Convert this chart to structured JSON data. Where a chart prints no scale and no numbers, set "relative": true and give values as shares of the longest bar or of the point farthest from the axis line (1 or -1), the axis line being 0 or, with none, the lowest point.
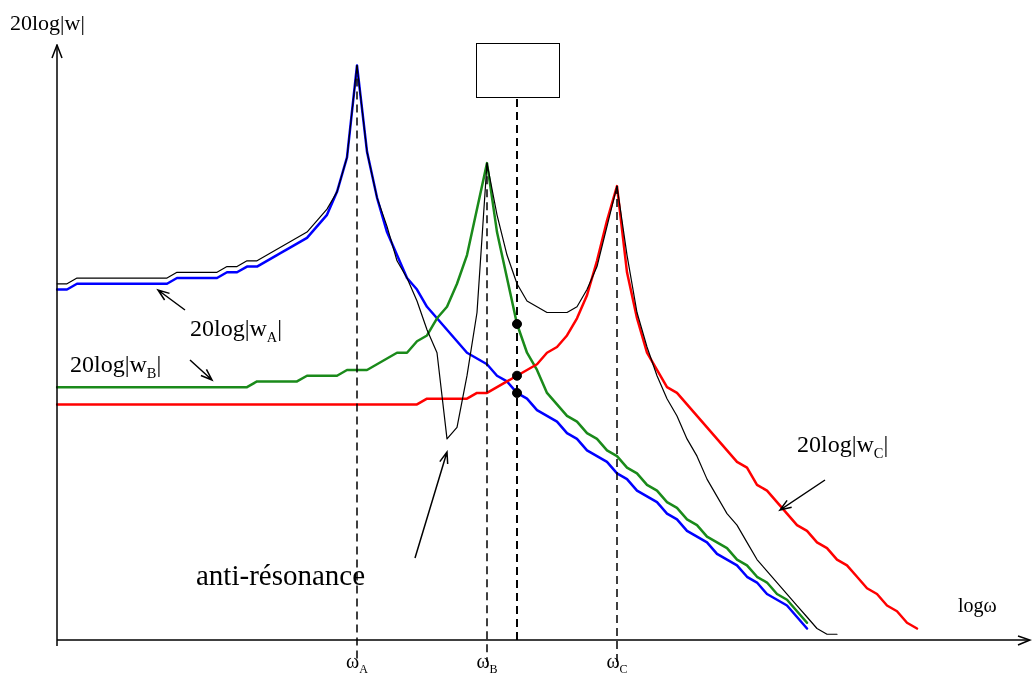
{
  "chart_data": {
    "type": "line",
    "relative": true,
    "ylabel": "20log|w|",
    "xlabel": "logω",
    "categories": [
      null,
      null,
      null,
      null,
      null,
      null,
      null,
      null,
      null,
      null,
      null,
      null,
      null,
      null,
      null,
      null,
      null,
      null,
      null,
      null,
      null,
      null,
      null,
      null,
      null,
      null,
      null,
      null,
      null,
      null,
      "ω$_{A}$",
      null,
      null,
      null,
      null,
      null,
      null,
      null,
      null,
      null,
      null,
      null,
      null,
      "ω$_{B}$",
      null,
      null,
      null,
      null,
      null,
      null,
      null,
      null,
      null,
      null,
      null,
      null,
      "ω$_{C}$",
      null,
      null,
      null,
      null,
      null,
      null,
      null,
      null,
      null,
      null,
      null,
      null,
      null,
      null,
      null,
      null,
      null,
      null,
      null,
      null,
      null,
      null,
      null,
      null,
      null,
      null,
      null,
      null,
      null,
      null,
      null,
      null,
      null,
      null,
      null,
      null,
      null,
      null,
      null,
      null
    ],
    "series": [
      {
        "name": "20log|w$_{A}$|",
        "color": "#0000ff",
        "values": [
          0.61,
          0.61,
          0.62,
          0.62,
          0.62,
          0.62,
          0.62,
          0.62,
          0.62,
          0.62,
          0.62,
          0.62,
          0.63,
          0.63,
          0.63,
          0.63,
          0.63,
          0.64,
          0.64,
          0.65,
          0.65,
          0.66,
          0.67,
          0.68,
          0.69,
          0.7,
          0.72,
          0.74,
          0.78,
          0.84,
          1,
          0.85,
          0.77,
          0.71,
          0.67,
          0.63,
          0.61,
          0.58,
          0.56,
          0.54,
          0.52,
          0.5,
          0.49,
          0.48,
          0.46,
          0.45,
          0.43,
          0.42,
          0.4,
          0.39,
          0.38,
          0.36,
          0.35,
          0.33,
          0.32,
          0.31,
          0.29,
          0.28,
          0.26,
          0.25,
          0.24,
          0.22,
          0.21,
          0.19,
          0.18,
          0.17,
          0.15,
          0.14,
          0.13,
          0.11,
          0.1,
          0.08,
          0.07,
          0.06,
          0.04,
          0.02,
          null,
          null,
          null,
          null,
          null,
          null,
          null,
          null,
          null,
          null,
          null,
          null,
          null,
          null,
          null,
          null,
          null,
          null,
          null,
          null,
          null
        ]
      },
      {
        "name": "20log|w$_{B}$|",
        "color": "#1a8a1a",
        "values": [
          0.44,
          0.44,
          0.44,
          0.44,
          0.44,
          0.44,
          0.44,
          0.44,
          0.44,
          0.44,
          0.44,
          0.44,
          0.44,
          0.44,
          0.44,
          0.44,
          0.44,
          0.44,
          0.44,
          0.44,
          0.45,
          0.45,
          0.45,
          0.45,
          0.45,
          0.46,
          0.46,
          0.46,
          0.46,
          0.47,
          0.47,
          0.47,
          0.48,
          0.49,
          0.5,
          0.5,
          0.52,
          0.53,
          0.56,
          0.58,
          0.62,
          0.67,
          0.75,
          0.83,
          0.71,
          0.63,
          0.55,
          0.5,
          0.47,
          0.43,
          0.41,
          0.39,
          0.38,
          0.36,
          0.35,
          0.33,
          0.32,
          0.3,
          0.29,
          0.27,
          0.26,
          0.24,
          0.23,
          0.21,
          0.2,
          0.18,
          0.17,
          0.16,
          0.14,
          0.13,
          0.11,
          0.1,
          0.08,
          0.07,
          0.05,
          0.03,
          null,
          null,
          null,
          null,
          null,
          null,
          null,
          null,
          null,
          null,
          null,
          null,
          null,
          null,
          null,
          null,
          null,
          null,
          null,
          null,
          null
        ]
      },
      {
        "name": "20log|w$_{C}$|",
        "color": "#ff0000",
        "values": [
          0.41,
          0.41,
          0.41,
          0.41,
          0.41,
          0.41,
          0.41,
          0.41,
          0.41,
          0.41,
          0.41,
          0.41,
          0.41,
          0.41,
          0.41,
          0.41,
          0.41,
          0.41,
          0.41,
          0.41,
          0.41,
          0.41,
          0.41,
          0.41,
          0.41,
          0.41,
          0.41,
          0.41,
          0.41,
          0.41,
          0.41,
          0.41,
          0.41,
          0.41,
          0.41,
          0.41,
          0.41,
          0.42,
          0.42,
          0.42,
          0.42,
          0.42,
          0.43,
          0.43,
          0.44,
          0.45,
          0.46,
          0.47,
          0.48,
          0.5,
          0.51,
          0.53,
          0.56,
          0.6,
          0.66,
          0.73,
          0.79,
          0.64,
          0.56,
          0.5,
          0.47,
          0.44,
          0.43,
          0.41,
          0.39,
          0.37,
          0.35,
          0.33,
          0.31,
          0.3,
          0.27,
          0.26,
          0.24,
          0.22,
          0.2,
          0.19,
          0.17,
          0.16,
          0.14,
          0.13,
          0.11,
          0.09,
          0.08,
          0.06,
          0.05,
          0.03,
          0.02,
          null,
          null,
          null,
          null,
          null,
          null,
          null,
          null,
          null,
          null
        ]
      },
      {
        "color": "#000000",
        "values": [
          0.62,
          0.62,
          0.63,
          0.63,
          0.63,
          0.63,
          0.63,
          0.63,
          0.63,
          0.63,
          0.63,
          0.63,
          0.64,
          0.64,
          0.64,
          0.64,
          0.64,
          0.65,
          0.65,
          0.66,
          0.66,
          0.67,
          0.68,
          0.69,
          0.7,
          0.71,
          0.73,
          0.75,
          0.78,
          0.84,
          1,
          0.85,
          0.77,
          0.72,
          0.66,
          0.63,
          0.59,
          0.54,
          0.5,
          0.35,
          0.37,
          0.46,
          0.57,
          0.83,
          0.74,
          0.67,
          0.62,
          0.59,
          0.58,
          0.57,
          0.57,
          0.57,
          0.58,
          0.61,
          0.65,
          0.72,
          0.79,
          0.67,
          0.57,
          0.51,
          0.46,
          0.42,
          0.39,
          0.35,
          0.32,
          0.28,
          0.25,
          0.22,
          0.2,
          0.17,
          0.14,
          0.12,
          0.1,
          0.08,
          0.06,
          0.04,
          0.02,
          0.01,
          0.01,
          null,
          null,
          null,
          null,
          null,
          null,
          null,
          null,
          null,
          null,
          null,
          null,
          null,
          null,
          null,
          null,
          null,
          null
        ]
      },
      {
        "type": "scatter",
        "marker": "circle",
        "color": "#000000",
        "values": [
          null,
          null,
          null,
          null,
          null,
          null,
          null,
          null,
          null,
          null,
          null,
          null,
          null,
          null,
          null,
          null,
          null,
          null,
          null,
          null,
          null,
          null,
          null,
          null,
          null,
          null,
          null,
          null,
          null,
          null,
          null,
          null,
          null,
          null,
          null,
          null,
          null,
          null,
          null,
          null,
          null,
          null,
          null,
          null,
          null,
          null,
          0.55,
          null,
          null,
          null,
          null,
          null,
          null,
          null,
          null,
          null,
          null,
          null,
          null,
          null,
          null,
          null,
          null,
          null,
          null,
          null,
          null,
          null,
          null,
          null,
          null,
          null,
          null,
          null,
          null,
          null,
          null,
          null,
          null,
          null,
          null,
          null,
          null,
          null,
          null,
          null,
          null,
          null,
          null,
          null,
          null,
          null,
          null,
          null,
          null,
          null,
          null
        ]
      },
      {
        "type": "scatter",
        "marker": "circle",
        "color": "#000000",
        "values": [
          null,
          null,
          null,
          null,
          null,
          null,
          null,
          null,
          null,
          null,
          null,
          null,
          null,
          null,
          null,
          null,
          null,
          null,
          null,
          null,
          null,
          null,
          null,
          null,
          null,
          null,
          null,
          null,
          null,
          null,
          null,
          null,
          null,
          null,
          null,
          null,
          null,
          null,
          null,
          null,
          null,
          null,
          null,
          null,
          null,
          null,
          0.46,
          null,
          null,
          null,
          null,
          null,
          null,
          null,
          null,
          null,
          null,
          null,
          null,
          null,
          null,
          null,
          null,
          null,
          null,
          null,
          null,
          null,
          null,
          null,
          null,
          null,
          null,
          null,
          null,
          null,
          null,
          null,
          null,
          null,
          null,
          null,
          null,
          null,
          null,
          null,
          null,
          null,
          null,
          null,
          null,
          null,
          null,
          null,
          null,
          null,
          null
        ]
      },
      {
        "type": "scatter",
        "marker": "circle",
        "color": "#000000",
        "values": [
          null,
          null,
          null,
          null,
          null,
          null,
          null,
          null,
          null,
          null,
          null,
          null,
          null,
          null,
          null,
          null,
          null,
          null,
          null,
          null,
          null,
          null,
          null,
          null,
          null,
          null,
          null,
          null,
          null,
          null,
          null,
          null,
          null,
          null,
          null,
          null,
          null,
          null,
          null,
          null,
          null,
          null,
          null,
          null,
          null,
          null,
          0.43,
          null,
          null,
          null,
          null,
          null,
          null,
          null,
          null,
          null,
          null,
          null,
          null,
          null,
          null,
          null,
          null,
          null,
          null,
          null,
          null,
          null,
          null,
          null,
          null,
          null,
          null,
          null,
          null,
          null,
          null,
          null,
          null,
          null,
          null,
          null,
          null,
          null,
          null,
          null,
          null,
          null,
          null,
          null,
          null,
          null,
          null,
          null,
          null,
          null,
          null
        ]
      }
    ],
    "grid": "x",
    "annotations": [
      "anti-résonance"
    ]
  }
}
